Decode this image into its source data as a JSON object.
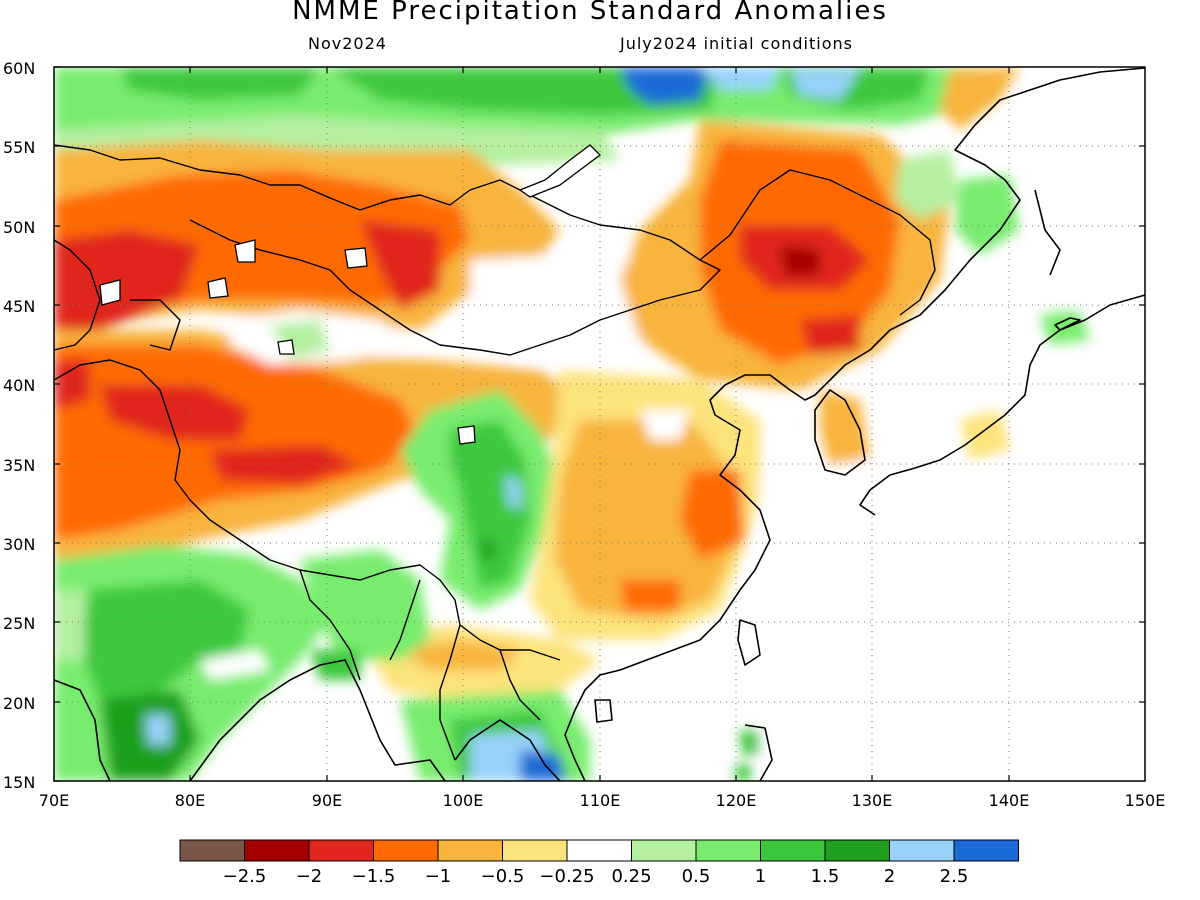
{
  "title": "NMME Precipitation Standard Anomalies",
  "subtitle_left": "Nov2024",
  "subtitle_right": "July2024 initial conditions",
  "lat_labels": [
    "60N",
    "55N",
    "50N",
    "45N",
    "40N",
    "35N",
    "30N",
    "25N",
    "20N",
    "15N"
  ],
  "lon_labels": [
    "70E",
    "80E",
    "90E",
    "100E",
    "110E",
    "120E",
    "130E",
    "140E",
    "150E"
  ],
  "colorbar": {
    "colors": [
      "#7a564a",
      "#a50000",
      "#e0261d",
      "#ff6a00",
      "#f8b43c",
      "#fde37c",
      "#ffffff",
      "#b4f0a0",
      "#78ec6e",
      "#3cc83c",
      "#1ea01e",
      "#96d2fa",
      "#1a6ad7"
    ],
    "labels": [
      "−2.5",
      "−2",
      "−1.5",
      "−1",
      "−0.5",
      "−0.25",
      "0.25",
      "0.5",
      "1",
      "1.5",
      "2",
      "2.5"
    ]
  },
  "colors": {
    "dry_extreme": "#a50000",
    "dry_strong": "#e0261d",
    "dry_mod": "#ff6a00",
    "dry_weak": "#f8b43c",
    "dry_slight": "#fde37c",
    "wet_slight": "#b4f0a0",
    "wet_weak": "#78ec6e",
    "wet_mod": "#3cc83c",
    "wet_strong": "#1ea01e",
    "wet_high": "#96d2fa",
    "wet_extreme": "#1a6ad7"
  }
}
